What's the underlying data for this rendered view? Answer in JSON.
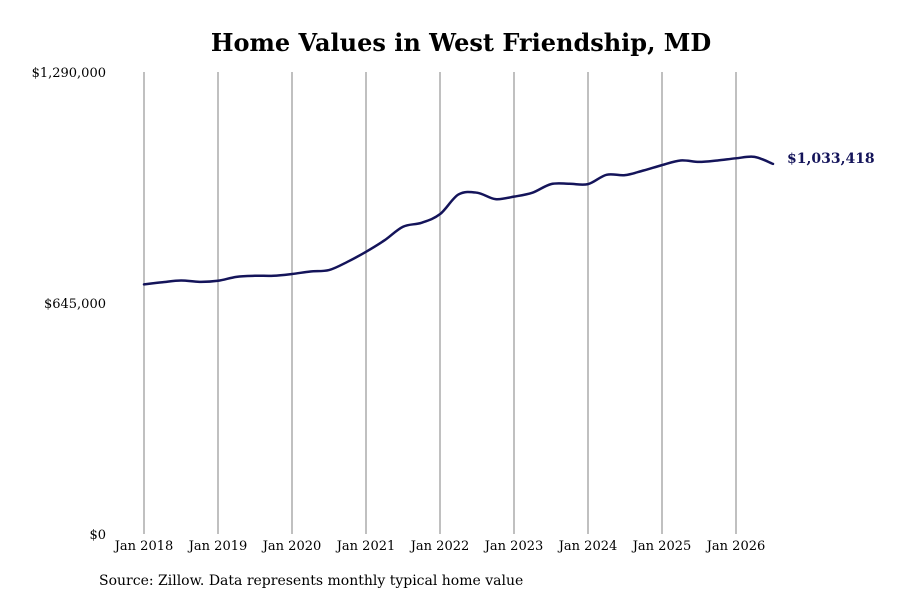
{
  "chart_data": {
    "type": "line",
    "title": "Home Values in West Friendship, MD",
    "xlabel": "",
    "ylabel": "",
    "x_ticks": [
      "Jan 2018",
      "Jan 2019",
      "Jan 2020",
      "Jan 2021",
      "Jan 2022",
      "Jan 2023",
      "Jan 2024",
      "Jan 2025",
      "Jan 2026"
    ],
    "y_ticks": [
      "$0",
      "$645,000",
      "$1,290,000"
    ],
    "ylim": [
      0,
      1290000
    ],
    "xlim": [
      "2018-01",
      "2026-12"
    ],
    "grid": {
      "vertical": true,
      "horizontal": false
    },
    "legend": "none",
    "series": [
      {
        "color": "#14145a",
        "x": [
          "2018-01",
          "2018-04",
          "2018-07",
          "2018-10",
          "2019-01",
          "2019-04",
          "2019-07",
          "2019-10",
          "2020-01",
          "2020-04",
          "2020-07",
          "2020-10",
          "2021-01",
          "2021-04",
          "2021-07",
          "2021-10",
          "2022-01",
          "2022-04",
          "2022-07",
          "2022-10",
          "2023-01",
          "2023-04",
          "2023-07",
          "2023-10",
          "2024-01",
          "2024-04",
          "2024-07",
          "2024-10",
          "2025-01",
          "2025-04",
          "2025-07",
          "2025-10",
          "2026-01",
          "2026-04",
          "2026-07"
        ],
        "values": [
          697000,
          703000,
          708000,
          704000,
          707000,
          718000,
          721000,
          721000,
          726000,
          733000,
          737000,
          760000,
          788000,
          820000,
          858000,
          869000,
          893000,
          948000,
          953000,
          935000,
          942000,
          953000,
          977000,
          978000,
          977000,
          1003000,
          1002000,
          1015000,
          1030000,
          1043000,
          1039000,
          1043000,
          1049000,
          1053000,
          1033418
        ]
      }
    ],
    "end_label": "$1,033,418"
  },
  "footer": {
    "source": "Source: Zillow. Data represents monthly typical home value"
  },
  "colors": {
    "line": "#14145a",
    "grid": "#808080"
  }
}
